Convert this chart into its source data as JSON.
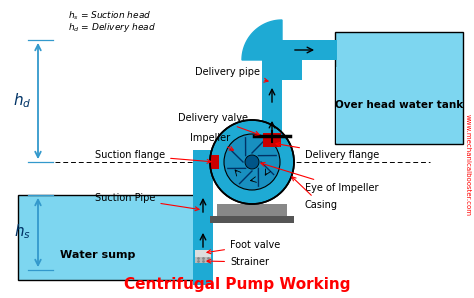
{
  "bg_color": "#ffffff",
  "cyan_pipe": "#1EAAD4",
  "cyan_water": "#40C4E8",
  "water_color": "#7DD6F0",
  "gray": "#888888",
  "dark_gray": "#555555",
  "red": "#FF0000",
  "red_flange": "#CC0000",
  "black": "#000000",
  "title": "Centrifugal Pump Working",
  "title_color": "#FF0000",
  "title_fontsize": 11,
  "label_fontsize": 7.0,
  "watermark": "www.mechanicalbooster.com",
  "arrow_color": "#1EAAD4",
  "dim_color": "#3399CC",
  "labels": {
    "hs_head": "$h_s$ = Suction head",
    "hd_head": "$h_d$ = Delivery head",
    "delivery_pipe": "Delivery pipe",
    "delivery_valve": "Delivery valve",
    "impeller": "Impeller",
    "suction_flange": "Suction flange",
    "delivery_flange": "Delivery flange",
    "eye_of_impeller": "Eye of Impeller",
    "casing": "Casing",
    "suction_pipe": "Suction Pipe",
    "foot_valve": "Foot valve",
    "strainer": "Strainer",
    "water_sump": "Water sump",
    "overhead_tank": "Over head water tank",
    "hd": "$h_d$",
    "hs": "$h_s$"
  }
}
